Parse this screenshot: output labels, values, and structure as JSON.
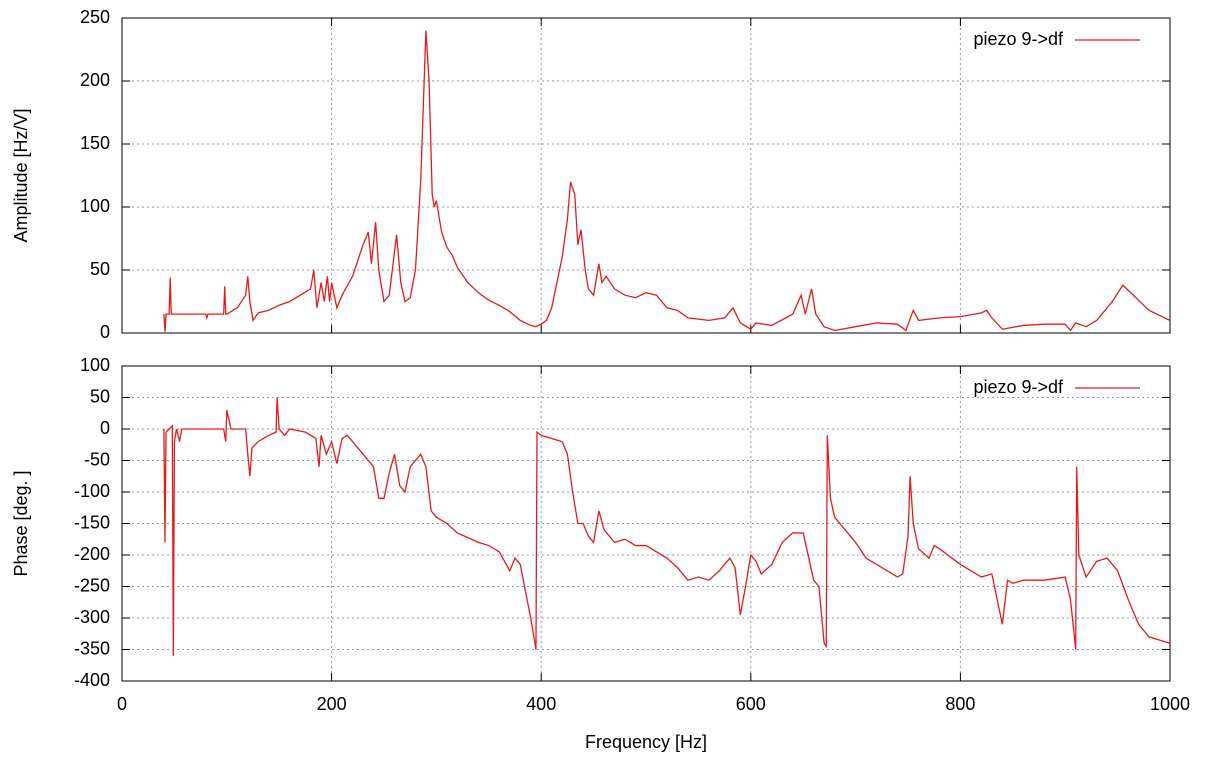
{
  "chart_data": [
    {
      "type": "line",
      "ylabel": "Amplitude [Hz/V]",
      "legend": "upper right",
      "grid": true,
      "xlim": [
        0,
        1000
      ],
      "ylim": [
        0,
        250
      ],
      "yticks": [
        0,
        50,
        100,
        150,
        200,
        250
      ],
      "x": [
        40,
        41,
        42,
        45,
        46,
        47,
        80,
        81,
        82,
        97,
        98,
        99,
        100,
        110,
        118,
        120,
        122,
        125,
        130,
        140,
        150,
        160,
        170,
        180,
        183,
        186,
        190,
        193,
        196,
        198,
        200,
        205,
        210,
        220,
        230,
        235,
        238,
        242,
        245,
        250,
        255,
        262,
        266,
        270,
        275,
        280,
        285,
        290,
        293,
        296,
        298,
        300,
        305,
        310,
        315,
        320,
        330,
        340,
        350,
        360,
        370,
        380,
        390,
        395,
        400,
        405,
        410,
        420,
        425,
        428,
        432,
        435,
        438,
        442,
        445,
        450,
        455,
        458,
        462,
        470,
        480,
        490,
        500,
        510,
        520,
        530,
        540,
        560,
        575,
        583,
        590,
        600,
        605,
        620,
        640,
        648,
        652,
        658,
        662,
        670,
        680,
        700,
        720,
        740,
        748,
        755,
        760,
        780,
        800,
        820,
        825,
        830,
        840,
        860,
        880,
        900,
        905,
        910,
        920,
        930,
        945,
        955,
        965,
        980,
        1000
      ],
      "series": [
        {
          "name": "piezo 9->df",
          "color": "#e41a1c",
          "values": [
            15,
            1,
            15,
            15,
            44,
            15,
            15,
            12,
            15,
            15,
            37,
            15,
            15,
            20,
            30,
            45,
            25,
            10,
            16,
            18,
            22,
            25,
            30,
            35,
            50,
            20,
            40,
            25,
            45,
            25,
            40,
            20,
            30,
            45,
            70,
            80,
            55,
            88,
            50,
            25,
            30,
            78,
            40,
            25,
            28,
            50,
            120,
            240,
            200,
            110,
            100,
            105,
            80,
            68,
            62,
            52,
            40,
            32,
            26,
            22,
            17,
            10,
            6,
            5,
            7,
            10,
            20,
            60,
            90,
            120,
            110,
            70,
            82,
            50,
            35,
            30,
            55,
            40,
            45,
            35,
            30,
            28,
            32,
            30,
            20,
            18,
            12,
            10,
            12,
            20,
            8,
            3,
            8,
            6,
            15,
            30,
            15,
            35,
            15,
            5,
            2,
            5,
            8,
            7,
            2,
            18,
            10,
            12,
            13,
            16,
            18,
            12,
            3,
            6,
            7,
            7,
            2,
            8,
            5,
            10,
            25,
            38,
            30,
            18,
            10
          ]
        }
      ]
    },
    {
      "type": "line",
      "ylabel": "Phase [deg. ]",
      "xlabel": "Frequency [Hz]",
      "legend": "upper right",
      "grid": true,
      "xlim": [
        0,
        1000
      ],
      "xticks": [
        0,
        200,
        400,
        600,
        800,
        1000
      ],
      "ylim": [
        -400,
        100
      ],
      "yticks": [
        -400,
        -350,
        -300,
        -250,
        -200,
        -150,
        -100,
        -50,
        0,
        50,
        100
      ],
      "x": [
        40,
        41,
        42,
        45,
        48,
        49,
        50,
        52,
        55,
        57,
        97,
        99,
        100,
        102,
        104,
        118,
        120,
        122,
        124,
        130,
        140,
        147,
        148,
        150,
        155,
        160,
        175,
        185,
        188,
        190,
        195,
        200,
        205,
        210,
        215,
        220,
        230,
        240,
        245,
        250,
        255,
        260,
        265,
        270,
        275,
        285,
        290,
        295,
        300,
        310,
        320,
        340,
        350,
        360,
        370,
        375,
        380,
        390,
        395,
        396,
        400,
        410,
        420,
        425,
        430,
        435,
        440,
        445,
        450,
        455,
        460,
        470,
        480,
        490,
        500,
        510,
        520,
        530,
        540,
        550,
        560,
        570,
        580,
        585,
        590,
        595,
        600,
        605,
        610,
        620,
        630,
        640,
        650,
        660,
        665,
        670,
        672,
        673,
        676,
        680,
        690,
        700,
        710,
        720,
        730,
        740,
        745,
        750,
        752,
        755,
        760,
        770,
        775,
        780,
        800,
        820,
        830,
        840,
        845,
        850,
        860,
        880,
        900,
        905,
        910,
        911,
        913,
        920,
        930,
        940,
        950,
        960,
        970,
        980,
        1000
      ],
      "series": [
        {
          "name": "piezo 9->df",
          "color": "#e41a1c",
          "values": [
            0,
            -180,
            -5,
            0,
            5,
            -360,
            -20,
            0,
            -20,
            0,
            0,
            -20,
            30,
            15,
            0,
            0,
            -40,
            -75,
            -30,
            -20,
            -10,
            -5,
            50,
            0,
            -10,
            0,
            -5,
            -15,
            -60,
            -10,
            -40,
            -20,
            -55,
            -15,
            -10,
            -20,
            -40,
            -60,
            -110,
            -110,
            -70,
            -40,
            -90,
            -100,
            -60,
            -40,
            -60,
            -130,
            -140,
            -150,
            -165,
            -180,
            -185,
            -195,
            -225,
            -205,
            -215,
            -300,
            -350,
            -5,
            -10,
            -15,
            -20,
            -40,
            -100,
            -150,
            -150,
            -170,
            -180,
            -130,
            -160,
            -180,
            -175,
            -185,
            -185,
            -195,
            -205,
            -220,
            -240,
            -235,
            -240,
            -225,
            -205,
            -220,
            -295,
            -250,
            -200,
            -210,
            -230,
            -215,
            -180,
            -165,
            -165,
            -240,
            -250,
            -340,
            -345,
            -10,
            -110,
            -140,
            -160,
            -180,
            -205,
            -215,
            -225,
            -235,
            -230,
            -170,
            -75,
            -150,
            -190,
            -205,
            -185,
            -190,
            -215,
            -235,
            -230,
            -310,
            -240,
            -245,
            -240,
            -240,
            -235,
            -270,
            -350,
            -60,
            -200,
            -235,
            -210,
            -205,
            -225,
            -270,
            -310,
            -330,
            -340
          ]
        }
      ]
    }
  ]
}
